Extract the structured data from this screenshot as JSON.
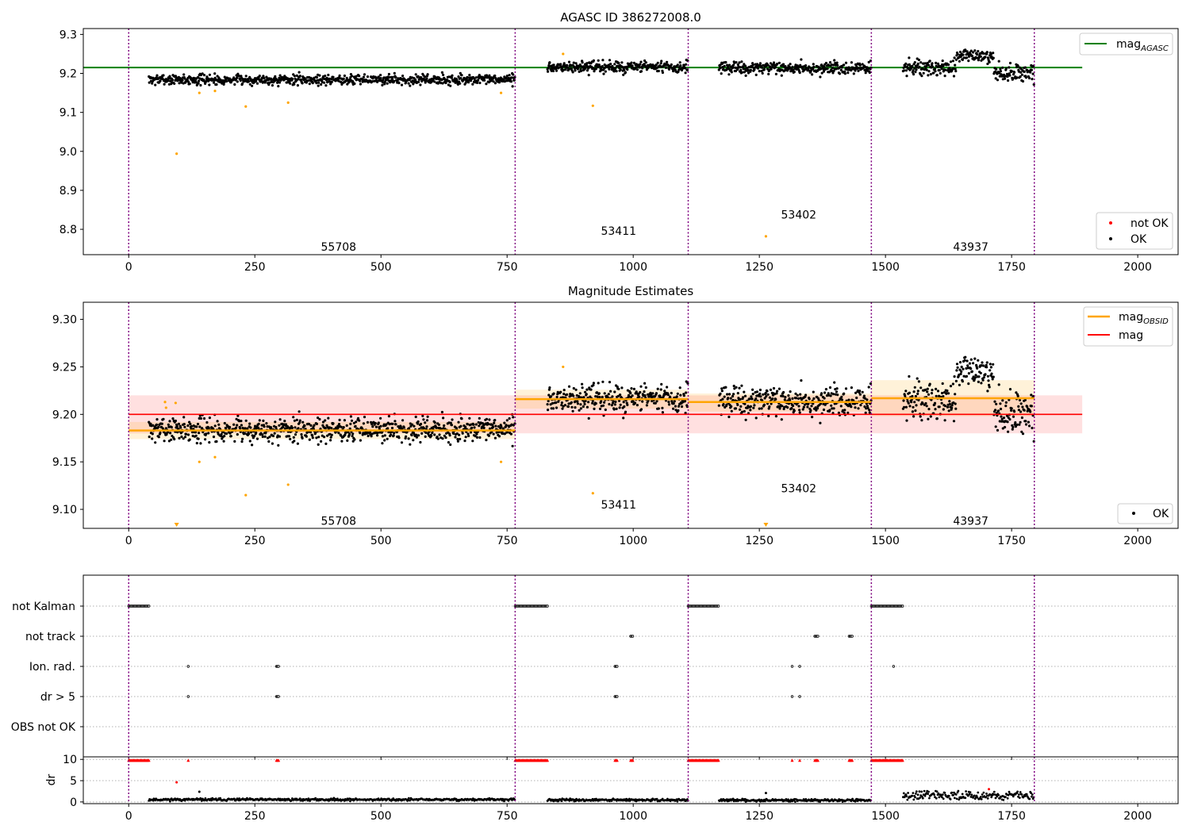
{
  "chart_data": [
    {
      "type": "scatter",
      "title": "AGASC ID 386272008.0",
      "xlim": [
        -90,
        2080
      ],
      "ylim": [
        8.735,
        9.315
      ],
      "xticks": [
        "0",
        "250",
        "500",
        "750",
        "1000",
        "1250",
        "1500",
        "1750",
        "2000"
      ],
      "yticks": [
        "8.8",
        "8.9",
        "9.0",
        "9.1",
        "9.2",
        "9.3"
      ],
      "obs_boundaries": [
        0,
        766,
        1109,
        1472,
        1795
      ],
      "segments": [
        {
          "obsid": "55708",
          "x": [
            40,
            766
          ],
          "y_mean": 9.184
        },
        {
          "obsid": "53411",
          "x": [
            830,
            1109
          ],
          "y_mean": 9.216
        },
        {
          "obsid": "53402",
          "x": [
            1170,
            1472
          ],
          "y_mean": 9.213
        },
        {
          "obsid": "43937",
          "x": [
            1535,
            1795
          ],
          "y_mean": 9.214
        }
      ],
      "obsid_labels": [
        {
          "text": "55708",
          "x": 381,
          "y": 8.755
        },
        {
          "text": "53411",
          "x": 936,
          "y": 8.796
        },
        {
          "text": "53402",
          "x": 1293,
          "y": 8.838
        },
        {
          "text": "43937",
          "x": 1634,
          "y": 8.755
        }
      ],
      "hline": {
        "name": "mag_AGASC",
        "y": 9.215,
        "x": [
          -90,
          1890
        ],
        "color": "#008000"
      },
      "outliers": [
        {
          "x": 95,
          "y": 8.994
        },
        {
          "x": 140,
          "y": 9.15
        },
        {
          "x": 171,
          "y": 9.155
        },
        {
          "x": 232,
          "y": 9.115
        },
        {
          "x": 316,
          "y": 9.125
        },
        {
          "x": 738,
          "y": 9.15
        },
        {
          "x": 861,
          "y": 9.25
        },
        {
          "x": 920,
          "y": 9.117
        },
        {
          "x": 1263,
          "y": 8.782
        }
      ],
      "legend_top": {
        "label_main": "mag",
        "label_sub": "AGASC"
      },
      "legend_bottom": [
        {
          "label": "not OK",
          "color": "#ff0000"
        },
        {
          "label": "OK",
          "color": "#000000"
        }
      ]
    },
    {
      "type": "scatter",
      "title": "Magnitude Estimates",
      "xlim": [
        -90,
        2080
      ],
      "ylim": [
        9.08,
        9.318
      ],
      "xticks": [
        "0",
        "250",
        "500",
        "750",
        "1000",
        "1250",
        "1500",
        "1750",
        "2000"
      ],
      "yticks": [
        "9.10",
        "9.15",
        "9.20",
        "9.25",
        "9.30"
      ],
      "mag": {
        "name": "mag",
        "y": 9.2,
        "band": [
          9.18,
          9.22
        ],
        "x": [
          0,
          1890
        ],
        "color": "#ff0000"
      },
      "obs_mags": [
        {
          "x": [
            0,
            766
          ],
          "y": 9.183,
          "band": [
            9.174,
            9.192
          ]
        },
        {
          "x": [
            766,
            1109
          ],
          "y": 9.216,
          "band": [
            9.206,
            9.226
          ]
        },
        {
          "x": [
            1109,
            1472
          ],
          "y": 9.213,
          "band": [
            9.203,
            9.222
          ]
        },
        {
          "x": [
            1472,
            1795
          ],
          "y": 9.217,
          "band": [
            9.198,
            9.236
          ]
        }
      ],
      "obsid_labels": [
        {
          "text": "55708",
          "x": 381,
          "y": 9.088
        },
        {
          "text": "53411",
          "x": 936,
          "y": 9.105
        },
        {
          "text": "53402",
          "x": 1293,
          "y": 9.122
        },
        {
          "text": "43937",
          "x": 1634,
          "y": 9.088
        }
      ],
      "outliers": [
        {
          "x": 72,
          "y": 9.213
        },
        {
          "x": 74,
          "y": 9.207
        },
        {
          "x": 93,
          "y": 9.212
        },
        {
          "x": 140,
          "y": 9.15
        },
        {
          "x": 171,
          "y": 9.155
        },
        {
          "x": 232,
          "y": 9.115
        },
        {
          "x": 316,
          "y": 9.126
        },
        {
          "x": 738,
          "y": 9.15
        },
        {
          "x": 861,
          "y": 9.25
        },
        {
          "x": 920,
          "y": 9.117
        }
      ],
      "lower_limits": [
        {
          "x": 95
        },
        {
          "x": 1263
        }
      ],
      "legend_top": [
        {
          "label_main": "mag",
          "label_sub": "OBSID",
          "color": "#ffa500"
        },
        {
          "label_main": "mag",
          "label_sub": "",
          "color": "#ff0000"
        }
      ],
      "legend_bottom": [
        {
          "label": "OK",
          "color": "#000000"
        }
      ]
    },
    {
      "type": "scatter",
      "title": "",
      "xlim": [
        -90,
        2080
      ],
      "flag_categories": [
        "not Kalman",
        "not track",
        "Ion. rad.",
        "dr > 5",
        "OBS not OK"
      ],
      "flag_ranges": {
        "not Kalman": [
          [
            0,
            40
          ],
          [
            766,
            830
          ],
          [
            1109,
            1170
          ],
          [
            1472,
            1535
          ]
        ],
        "not track": [
          [
            995,
            1000
          ],
          [
            1360,
            1366
          ],
          [
            1428,
            1434
          ]
        ],
        "Ion. rad.": [
          [
            118,
            118
          ],
          [
            293,
            298
          ],
          [
            964,
            969
          ],
          [
            1315,
            1315
          ],
          [
            1330,
            1330
          ],
          [
            1516,
            1516
          ]
        ],
        "dr > 5": [
          [
            118,
            118
          ],
          [
            293,
            298
          ],
          [
            964,
            969
          ],
          [
            1315,
            1315
          ],
          [
            1330,
            1330
          ]
        ],
        "OBS not OK": []
      },
      "dr": {
        "ylabel": "dr",
        "ylim": [
          -0.4,
          10.6
        ],
        "yticks": [
          "0",
          "5",
          "10"
        ],
        "flagged_ranges": [
          [
            0,
            40
          ],
          [
            118,
            118
          ],
          [
            293,
            298
          ],
          [
            766,
            830
          ],
          [
            964,
            969
          ],
          [
            995,
            1000
          ],
          [
            1109,
            1170
          ],
          [
            1315,
            1315
          ],
          [
            1330,
            1330
          ],
          [
            1360,
            1366
          ],
          [
            1428,
            1434
          ],
          [
            1472,
            1535
          ]
        ],
        "flagged_value": 9.8,
        "outliers": [
          {
            "x": 95,
            "y": 4.6
          },
          {
            "x": 140,
            "y": 2.4
          },
          {
            "x": 1263,
            "y": 2.1
          },
          {
            "x": 1705,
            "y": 3.0
          }
        ],
        "baseline": [
          {
            "x": [
              40,
              766
            ],
            "y": 0.55
          },
          {
            "x": [
              830,
              1109
            ],
            "y": 0.45
          },
          {
            "x": [
              1170,
              1472
            ],
            "y": 0.4
          },
          {
            "x": [
              1535,
              1795
            ],
            "y": 1.5
          }
        ]
      }
    }
  ]
}
